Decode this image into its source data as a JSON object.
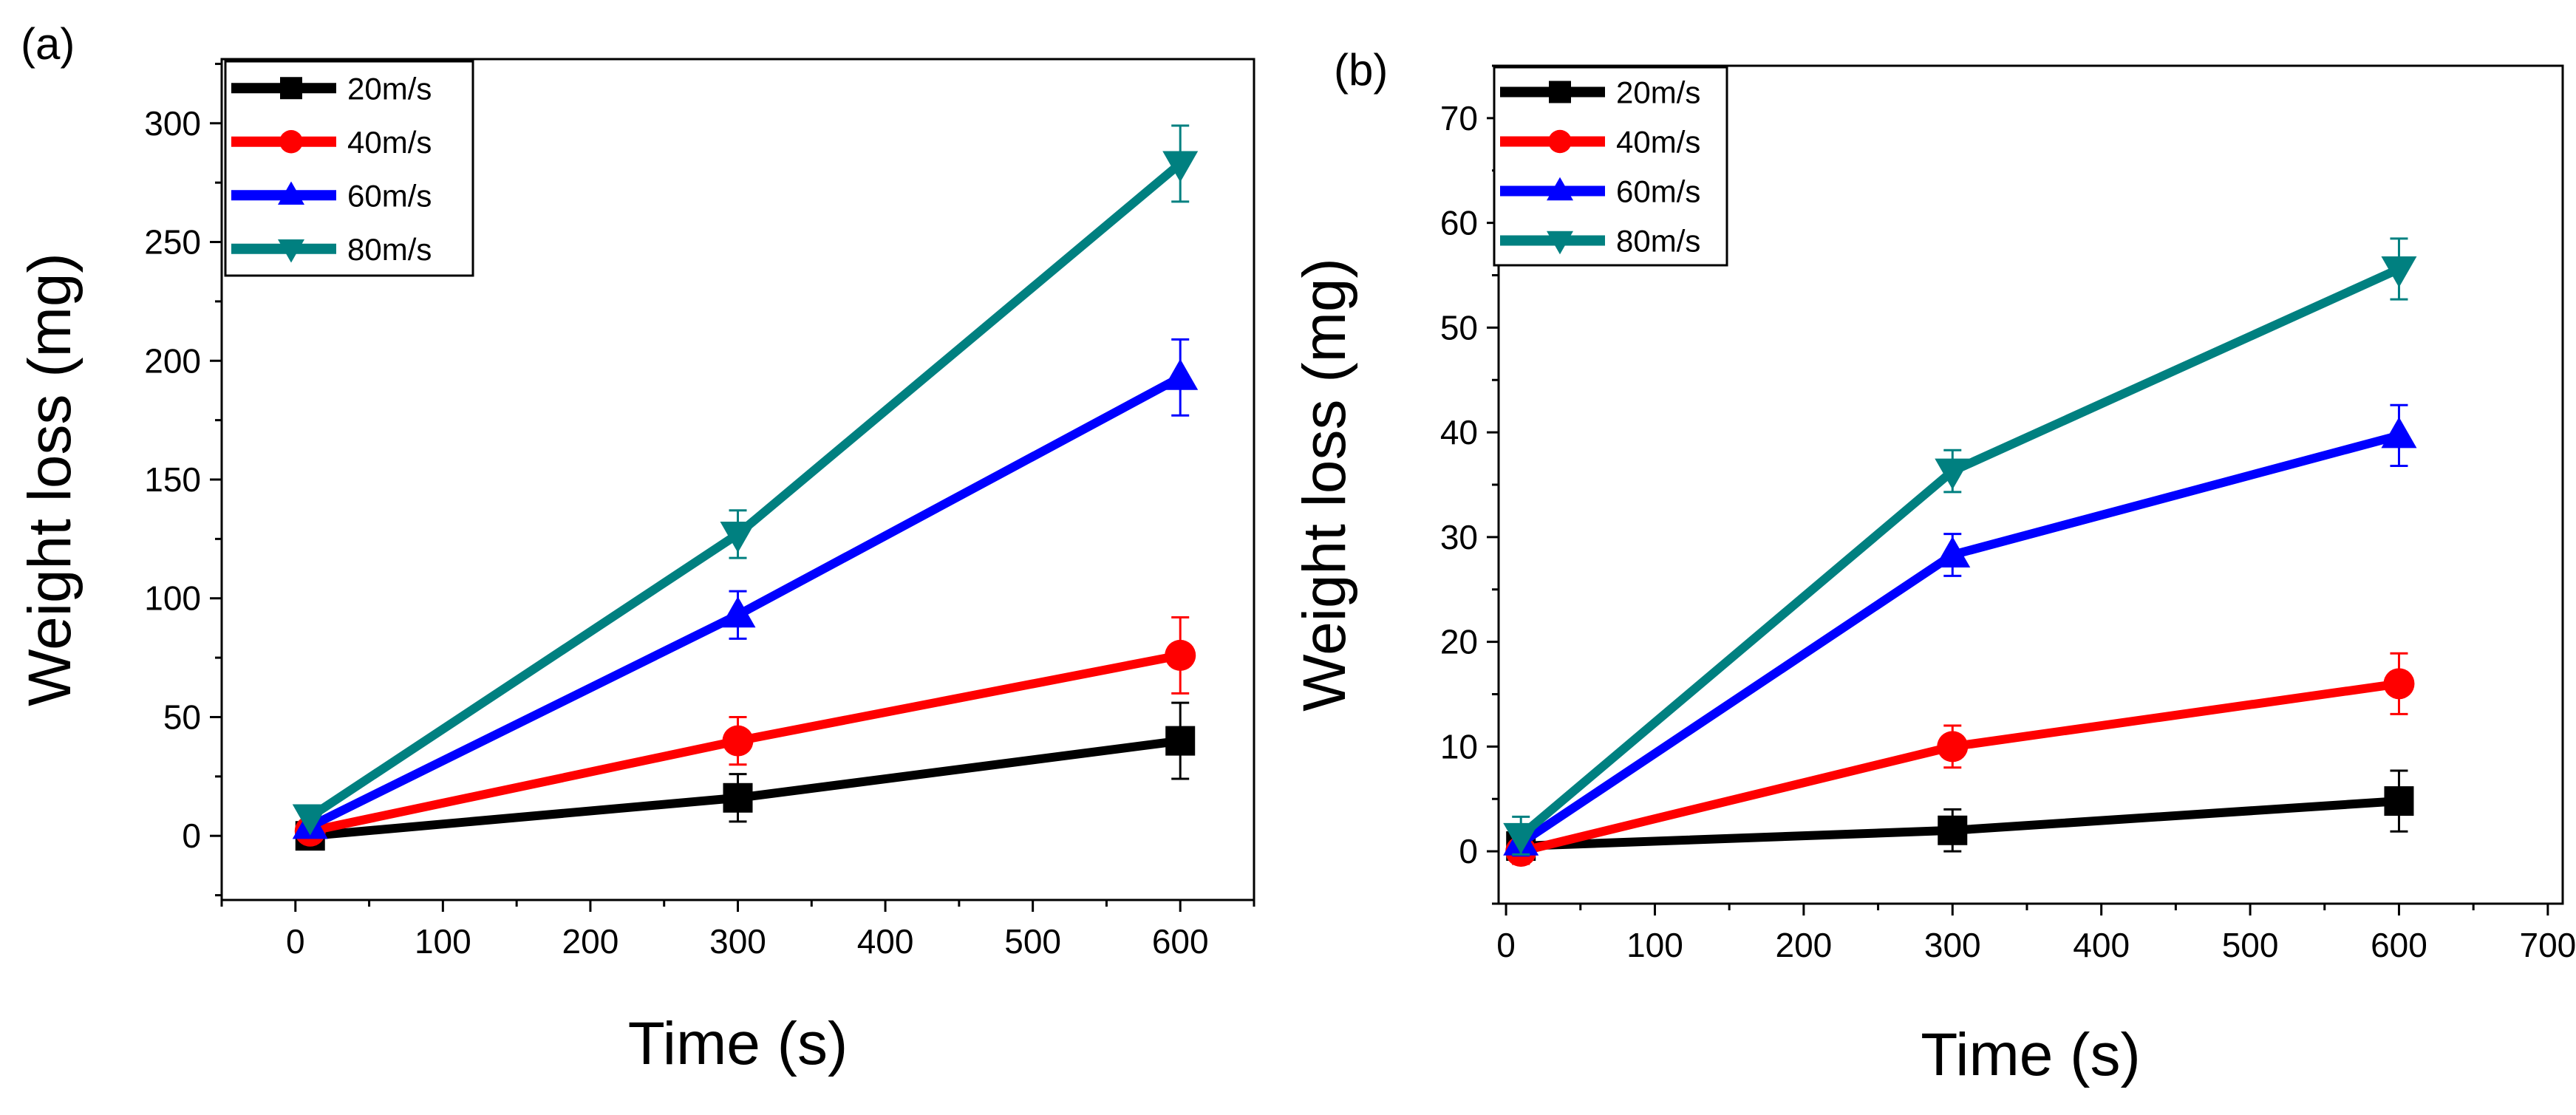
{
  "figure": {
    "panels": [
      "a",
      "b"
    ]
  },
  "chart_data": [
    {
      "type": "line",
      "panel_label": "(a)",
      "xlabel": "Time (s)",
      "ylabel": "Weight loss (mg)",
      "xlim": [
        -50,
        650
      ],
      "ylim": [
        -27,
        327
      ],
      "xticks": [
        0,
        100,
        200,
        300,
        400,
        500,
        600
      ],
      "yticks": [
        0,
        50,
        100,
        150,
        200,
        250,
        300
      ],
      "x": [
        10,
        300,
        600
      ],
      "legend_position": "top-left",
      "series": [
        {
          "name": "20m/s",
          "color": "#000000",
          "marker": "square",
          "values": [
            0,
            16,
            40
          ],
          "errors": [
            0,
            10,
            16
          ]
        },
        {
          "name": "40m/s",
          "color": "#ff0000",
          "marker": "circle",
          "values": [
            2,
            40,
            76
          ],
          "errors": [
            0,
            10,
            16
          ]
        },
        {
          "name": "60m/s",
          "color": "#0000ff",
          "marker": "triangle-up",
          "values": [
            4,
            93,
            193
          ],
          "errors": [
            0,
            10,
            16
          ]
        },
        {
          "name": "80m/s",
          "color": "#008080",
          "marker": "triangle-down",
          "values": [
            8,
            127,
            283
          ],
          "errors": [
            0,
            10,
            16
          ]
        }
      ]
    },
    {
      "type": "line",
      "panel_label": "(b)",
      "xlabel": "Time (s)",
      "ylabel": "Weight loss (mg)",
      "xlim": [
        -5,
        710
      ],
      "ylim": [
        -5,
        75
      ],
      "xticks": [
        0,
        100,
        200,
        300,
        400,
        500,
        600,
        700
      ],
      "yticks": [
        0,
        10,
        20,
        30,
        40,
        50,
        60,
        70
      ],
      "x": [
        10,
        300,
        600
      ],
      "legend_position": "top-left",
      "series": [
        {
          "name": "20m/s",
          "color": "#000000",
          "marker": "square",
          "values": [
            0.5,
            2,
            4.8
          ],
          "errors": [
            1.2,
            2,
            2.9
          ]
        },
        {
          "name": "40m/s",
          "color": "#ff0000",
          "marker": "circle",
          "values": [
            0,
            10,
            16
          ],
          "errors": [
            1.2,
            2,
            2.9
          ]
        },
        {
          "name": "60m/s",
          "color": "#0000ff",
          "marker": "triangle-up",
          "values": [
            0.8,
            28.3,
            39.7
          ],
          "errors": [
            1.2,
            2,
            2.9
          ]
        },
        {
          "name": "80m/s",
          "color": "#008080",
          "marker": "triangle-down",
          "values": [
            1.5,
            36.3,
            55.6
          ],
          "errors": [
            1.8,
            2,
            2.9
          ]
        }
      ]
    }
  ]
}
